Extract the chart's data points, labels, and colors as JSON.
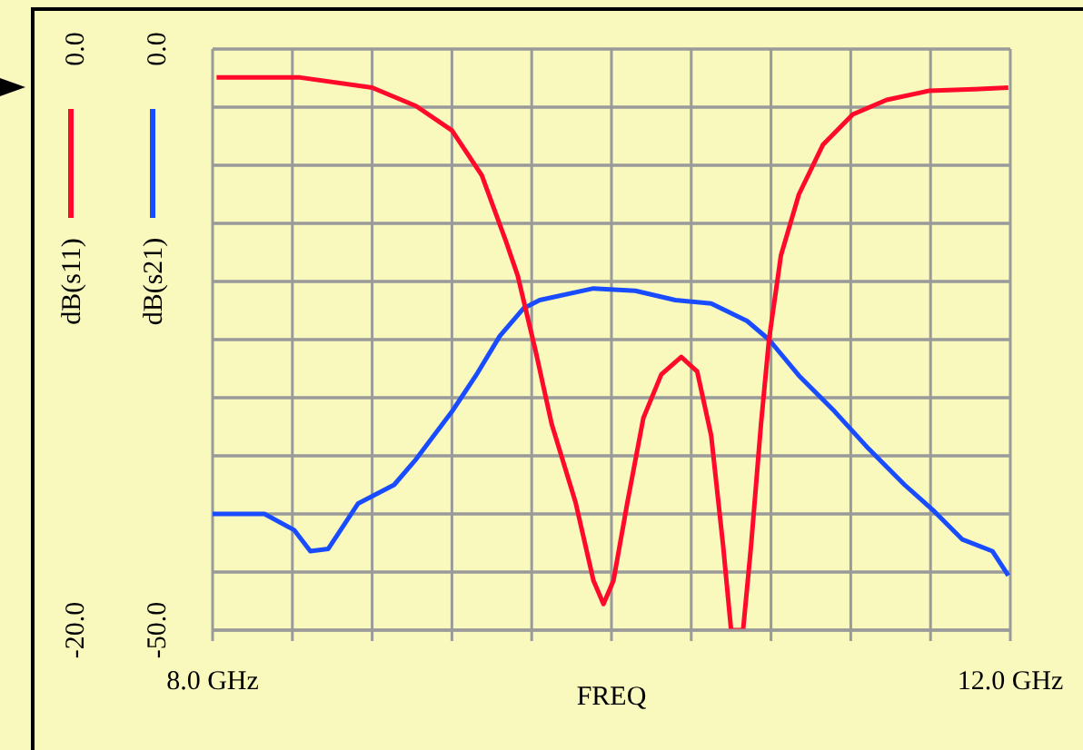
{
  "chart_data": {
    "type": "line",
    "xlabel": "FREQ",
    "ylabel": "dB(s21)",
    "y2label": "dB(s11)",
    "xlim": [
      8,
      12
    ],
    "xticks": [
      {
        "value": 8,
        "label": "8.0 GHz"
      },
      {
        "value": 8.4,
        "label": null
      },
      {
        "value": 8.8,
        "label": null
      },
      {
        "value": 9.2,
        "label": null
      },
      {
        "value": 9.6,
        "label": null
      },
      {
        "value": 10,
        "label": null
      },
      {
        "value": 10.4,
        "label": null
      },
      {
        "value": 10.8,
        "label": null
      },
      {
        "value": 11.2,
        "label": null
      },
      {
        "value": 11.6,
        "label": null
      },
      {
        "value": 12,
        "label": "12.0 GHz"
      }
    ],
    "ylim": [
      -50,
      0
    ],
    "yticks": [
      {
        "value": 0,
        "label": "0.0"
      },
      {
        "value": -5,
        "label": null
      },
      {
        "value": -10,
        "label": null
      },
      {
        "value": -15,
        "label": null
      },
      {
        "value": -20,
        "label": null
      },
      {
        "value": -25,
        "label": null
      },
      {
        "value": -30,
        "label": null
      },
      {
        "value": -35,
        "label": null
      },
      {
        "value": -40,
        "label": null
      },
      {
        "value": -45,
        "label": null
      },
      {
        "value": -50,
        "label": "-50.0"
      }
    ],
    "y2lim": [
      -20,
      0
    ],
    "y2ticks": [
      {
        "value": 0,
        "label": "0.0"
      },
      {
        "value": -2,
        "label": null
      },
      {
        "value": -4,
        "label": null
      },
      {
        "value": -6,
        "label": null
      },
      {
        "value": -8,
        "label": null
      },
      {
        "value": -10,
        "label": null
      },
      {
        "value": -12,
        "label": null
      },
      {
        "value": -14,
        "label": null
      },
      {
        "value": -16,
        "label": null
      },
      {
        "value": -18,
        "label": null
      },
      {
        "value": -20,
        "label": "-20.0"
      }
    ],
    "grid": true,
    "line_style": "solid",
    "marker": "none",
    "series": [
      {
        "color": "#1a4cff",
        "axis": "y",
        "x": [
          8.0,
          8.26,
          8.41,
          8.49,
          8.58,
          8.73,
          8.91,
          9.02,
          9.2,
          9.32,
          9.44,
          9.56,
          9.64,
          9.91,
          10.12,
          10.32,
          10.5,
          10.68,
          10.79,
          10.94,
          11.12,
          11.29,
          11.47,
          11.62,
          11.76,
          11.91,
          11.99
        ],
        "values": [
          -40.0,
          -40.0,
          -41.4,
          -43.2,
          -43,
          -39.1,
          -37.5,
          -35.3,
          -31.2,
          -28.1,
          -24.7,
          -22.3,
          -21.6,
          -20.6,
          -20.8,
          -21.6,
          -21.9,
          -23.4,
          -25.0,
          -28.1,
          -31.2,
          -34.4,
          -37.5,
          -39.8,
          -42.2,
          -43.2,
          -45.3
        ]
      },
      {
        "color": "#ff0a2a",
        "axis": "y2",
        "x": [
          8.02,
          8.44,
          8.8,
          9.02,
          9.2,
          9.35,
          9.47,
          9.53,
          9.62,
          9.7,
          9.82,
          9.91,
          9.96,
          10.01,
          10.08,
          10.16,
          10.25,
          10.35,
          10.43,
          10.5,
          10.56,
          10.6,
          10.66,
          10.7,
          10.75,
          10.79,
          10.85,
          10.94,
          11.06,
          11.21,
          11.38,
          11.59,
          11.82,
          11.99
        ],
        "values": [
          -0.98,
          -0.98,
          -1.33,
          -1.96,
          -2.8,
          -4.35,
          -6.6,
          -7.8,
          -10.4,
          -12.9,
          -15.6,
          -18.3,
          -19.1,
          -18.3,
          -15.6,
          -12.7,
          -11.2,
          -10.6,
          -11.1,
          -13.3,
          -17.1,
          -20,
          -20,
          -17.1,
          -12.9,
          -10.0,
          -7.1,
          -5.0,
          -3.3,
          -2.25,
          -1.75,
          -1.44,
          -1.38,
          -1.33
        ]
      }
    ]
  }
}
